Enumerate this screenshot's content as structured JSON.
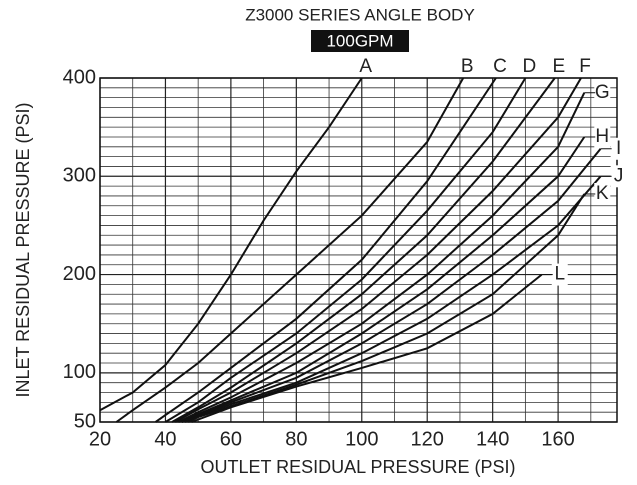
{
  "chart_data": {
    "type": "line",
    "title": "Z3000 SERIES ANGLE BODY",
    "subtitle": "100GPM",
    "x_label": "OUTLET RESIDUAL PRESSURE (PSI)",
    "y_label": "INLET RESIDUAL PRESSURE (PSI)",
    "xlim": [
      20,
      178
    ],
    "ylim": [
      50,
      400
    ],
    "xticks": [
      20,
      40,
      60,
      80,
      100,
      120,
      140,
      160
    ],
    "yticks": [
      50,
      100,
      200,
      300,
      400
    ],
    "xminorticks": [
      30,
      50,
      70,
      90,
      110,
      130,
      150,
      170
    ],
    "yminorticks": [
      60,
      70,
      80,
      90,
      110,
      120,
      130,
      140,
      150,
      160,
      170,
      180,
      190,
      210,
      220,
      230,
      240,
      250,
      260,
      270,
      280,
      290,
      310,
      320,
      330,
      340,
      350,
      360,
      370,
      380,
      390
    ],
    "grid": true,
    "color": "#111111",
    "series": [
      {
        "name": "A",
        "x": [
          20,
          30,
          40,
          50,
          60,
          70,
          80,
          90,
          100
        ],
        "values": [
          62,
          80,
          108,
          150,
          200,
          255,
          305,
          350,
          400
        ]
      },
      {
        "name": "B",
        "x": [
          25,
          30,
          40,
          50,
          60,
          80,
          100,
          120,
          131
        ],
        "values": [
          50,
          62,
          85,
          110,
          140,
          200,
          260,
          335,
          400
        ]
      },
      {
        "name": "C",
        "x": [
          37,
          40,
          50,
          60,
          80,
          100,
          120,
          141
        ],
        "values": [
          50,
          57,
          80,
          105,
          155,
          215,
          295,
          400
        ]
      },
      {
        "name": "D",
        "x": [
          40,
          50,
          60,
          80,
          100,
          120,
          140,
          150
        ],
        "values": [
          50,
          70,
          95,
          140,
          195,
          265,
          345,
          400
        ]
      },
      {
        "name": "E",
        "x": [
          42,
          50,
          60,
          80,
          100,
          120,
          140,
          159
        ],
        "values": [
          50,
          65,
          85,
          130,
          180,
          240,
          315,
          400
        ]
      },
      {
        "name": "F",
        "x": [
          43,
          50,
          60,
          80,
          100,
          120,
          140,
          160,
          167
        ],
        "values": [
          50,
          63,
          80,
          120,
          165,
          220,
          285,
          360,
          400
        ]
      },
      {
        "name": "G",
        "x": [
          44,
          50,
          60,
          80,
          100,
          120,
          140,
          160,
          168
        ],
        "values": [
          50,
          60,
          75,
          110,
          150,
          200,
          260,
          330,
          385
        ]
      },
      {
        "name": "H",
        "x": [
          45,
          50,
          60,
          80,
          100,
          120,
          140,
          160,
          168
        ],
        "values": [
          50,
          58,
          72,
          100,
          140,
          185,
          240,
          300,
          340
        ]
      },
      {
        "name": "I",
        "x": [
          45,
          50,
          60,
          80,
          100,
          120,
          140,
          160,
          173
        ],
        "values": [
          50,
          57,
          70,
          95,
          130,
          170,
          220,
          275,
          328
        ]
      },
      {
        "name": "J",
        "x": [
          46,
          50,
          60,
          80,
          100,
          120,
          140,
          160,
          173
        ],
        "values": [
          50,
          56,
          68,
          90,
          120,
          155,
          200,
          250,
          300
        ]
      },
      {
        "name": "K",
        "x": [
          47,
          50,
          60,
          80,
          100,
          120,
          140,
          160,
          168
        ],
        "values": [
          50,
          55,
          66,
          88,
          112,
          140,
          180,
          240,
          282
        ]
      },
      {
        "name": "L",
        "x": [
          48,
          60,
          80,
          100,
          120,
          140,
          155
        ],
        "values": [
          50,
          65,
          86,
          105,
          125,
          160,
          200
        ]
      }
    ]
  }
}
